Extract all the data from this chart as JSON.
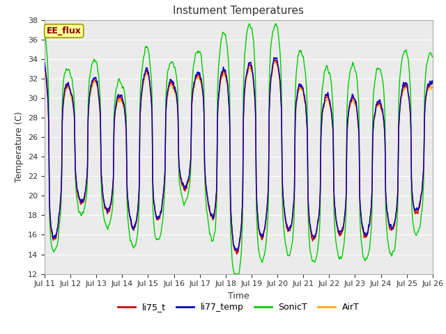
{
  "title": "Instument Temperatures",
  "xlabel": "Time",
  "ylabel": "Temperature (C)",
  "ylim": [
    12,
    38
  ],
  "yticks": [
    12,
    14,
    16,
    18,
    20,
    22,
    24,
    26,
    28,
    30,
    32,
    34,
    36,
    38
  ],
  "xtick_labels": [
    "Jul 11",
    "Jul 12",
    "Jul 13",
    "Jul 14",
    "Jul 15",
    "Jul 16",
    "Jul 17",
    "Jul 18",
    "Jul 19",
    "Jul 20",
    "Jul 21",
    "Jul 22",
    "Jul 23",
    "Jul 24",
    "Jul 25",
    "Jul 26"
  ],
  "colors": {
    "li75_t": "#cc0000",
    "li77_temp": "#0000cc",
    "SonicT": "#00cc00",
    "AirT": "#ffaa00"
  },
  "plot_bg": "#ebebeb",
  "fig_bg": "#ffffff",
  "annotation_text": "EE_flux",
  "annotation_bg": "#ffff99",
  "annotation_border": "#999900",
  "annotation_color": "#800000",
  "grid_color": "#ffffff",
  "spine_color": "#aaaaaa",
  "title_color": "#333333",
  "label_color": "#333333",
  "tick_color": "#333333",
  "title_fontsize": 11,
  "label_fontsize": 9,
  "tick_fontsize": 8,
  "legend_fontsize": 9,
  "linewidth": 1.0,
  "num_points": 2000,
  "day_peaks": [
    33.8,
    31.0,
    32.0,
    30.0,
    33.0,
    31.5,
    32.5,
    32.8,
    33.5,
    34.0,
    31.0,
    30.0,
    30.0,
    29.5,
    31.5,
    31.5
  ],
  "day_troughs": [
    13.0,
    19.5,
    19.0,
    17.5,
    15.5,
    20.5,
    21.0,
    13.8,
    14.5,
    17.5,
    15.0,
    16.5,
    15.5,
    16.5,
    16.5,
    21.0
  ],
  "sonic_extra": [
    3.5,
    1.5,
    2.0,
    1.5,
    2.5,
    2.0,
    2.5,
    4.0,
    4.0,
    3.5,
    3.5,
    3.0,
    3.5,
    3.5,
    3.5,
    3.0
  ],
  "sonic_low_extra": [
    -1.5,
    -1.0,
    -1.5,
    -1.5,
    -2.5,
    -1.5,
    -1.5,
    -3.0,
    -2.5,
    -2.5,
    -2.5,
    -2.5,
    -2.5,
    -2.5,
    -2.5,
    -2.0
  ]
}
